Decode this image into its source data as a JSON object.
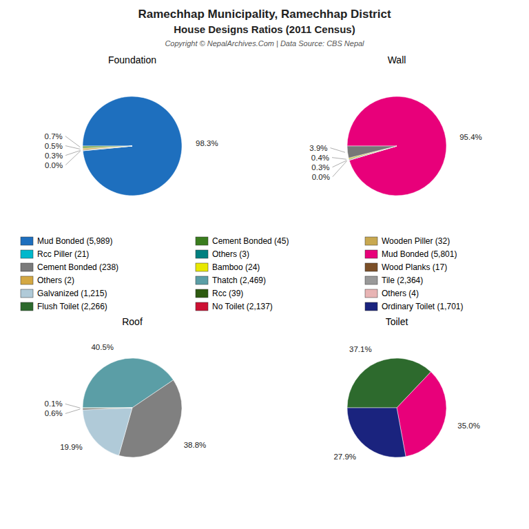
{
  "title": "Ramechhap Municipality, Ramechhap District",
  "subtitle": "House Designs Ratios (2011 Census)",
  "annotations": [
    "Copyright © NepalArchives.Com | Data Source: CBS Nepal"
  ],
  "chart_data": [
    {
      "type": "pie",
      "title": "Foundation",
      "values": [
        98.3,
        0.04,
        0.3,
        0.5,
        0.7
      ],
      "value_labels": [
        "98.3%",
        "0.0%",
        "0.3%",
        "0.5%",
        "0.7%"
      ],
      "colors": [
        "#1e6fbe",
        "#00b8cc",
        "#7a7a7a",
        "#d4a843",
        "#7aa856"
      ],
      "data_labels": true
    },
    {
      "type": "pie",
      "title": "Wall",
      "values": [
        95.4,
        0.04,
        0.3,
        0.4,
        3.9
      ],
      "value_labels": [
        "95.4%",
        "0.0%",
        "0.3%",
        "0.4%",
        "3.9%"
      ],
      "colors": [
        "#e8007a",
        "#f0f0a0",
        "#6b8e8e",
        "#c8b400",
        "#777777"
      ],
      "data_labels": true
    },
    {
      "type": "pie",
      "title": "Roof",
      "values": [
        40.5,
        38.8,
        19.9,
        0.6,
        0.1
      ],
      "value_labels": [
        "40.5%",
        "38.8%",
        "19.9%",
        "0.6%",
        "0.1%"
      ],
      "colors": [
        "#5b9ea6",
        "#808080",
        "#b0cad8",
        "#888888",
        "#3d6b1e"
      ],
      "data_labels": true
    },
    {
      "type": "pie",
      "title": "Toilet",
      "values": [
        37.1,
        35.0,
        27.9
      ],
      "value_labels": [
        "37.1%",
        "35.0%",
        "27.9%"
      ],
      "colors": [
        "#2d6a2d",
        "#e8007a",
        "#1a237e"
      ],
      "data_labels": true
    }
  ],
  "legend_entries": [
    {
      "name": "Mud Bonded (5,989)",
      "color": "#1e6fbe"
    },
    {
      "name": "Cement Bonded (45)",
      "color": "#3a7d1e"
    },
    {
      "name": "Wooden Piller (32)",
      "color": "#c8a850"
    },
    {
      "name": "Rcc Piller (21)",
      "color": "#00b8cc"
    },
    {
      "name": "Others (3)",
      "color": "#008080"
    },
    {
      "name": "Mud Bonded (5,801)",
      "color": "#e8007a"
    },
    {
      "name": "Cement Bonded (238)",
      "color": "#7a7a7a"
    },
    {
      "name": "Bamboo (24)",
      "color": "#e8e800"
    },
    {
      "name": "Wood Planks (17)",
      "color": "#7b4f28"
    },
    {
      "name": "Others (2)",
      "color": "#d4a843"
    },
    {
      "name": "Thatch (2,469)",
      "color": "#5b9ea6"
    },
    {
      "name": "Tile (2,364)",
      "color": "#999999"
    },
    {
      "name": "Galvanized (1,215)",
      "color": "#b0cad8"
    },
    {
      "name": "Rcc (39)",
      "color": "#2e5a10"
    },
    {
      "name": "Others (4)",
      "color": "#e8b4b4"
    },
    {
      "name": "Flush Toilet (2,266)",
      "color": "#2d6a2d"
    },
    {
      "name": "No Toilet (2,137)",
      "color": "#cc1133"
    },
    {
      "name": "Ordinary Toilet (1,701)",
      "color": "#1a237e"
    }
  ]
}
